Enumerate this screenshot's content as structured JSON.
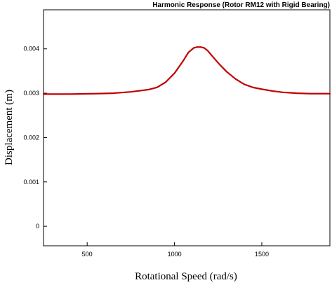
{
  "chart_data": {
    "type": "line",
    "title": "Harmonic Response (Rotor RM12 with Rigid Bearing)",
    "xlabel": "Rotational Speed (rad/s)",
    "ylabel": "Displacement (m)",
    "xlim": [
      250,
      1890
    ],
    "ylim": [
      -0.00044,
      0.00488
    ],
    "xticks": [
      500,
      1000,
      1500
    ],
    "yticks": [
      0,
      0.001,
      0.002,
      0.003,
      0.004
    ],
    "grid": false,
    "legend": "none",
    "series": [
      {
        "color": "#c00000",
        "x": [
          250,
          400,
          550,
          650,
          750,
          850,
          900,
          950,
          1000,
          1050,
          1080,
          1110,
          1130,
          1150,
          1170,
          1190,
          1220,
          1260,
          1300,
          1350,
          1400,
          1450,
          1500,
          1560,
          1620,
          1700,
          1780,
          1890
        ],
        "y": [
          0.00298,
          0.00298,
          0.00299,
          0.003,
          0.00303,
          0.00308,
          0.00313,
          0.00325,
          0.00345,
          0.00373,
          0.00392,
          0.00402,
          0.00404,
          0.00404,
          0.00402,
          0.00396,
          0.00382,
          0.00364,
          0.00348,
          0.00332,
          0.0032,
          0.00313,
          0.00309,
          0.00305,
          0.00302,
          0.003,
          0.00299,
          0.00299
        ]
      }
    ]
  }
}
